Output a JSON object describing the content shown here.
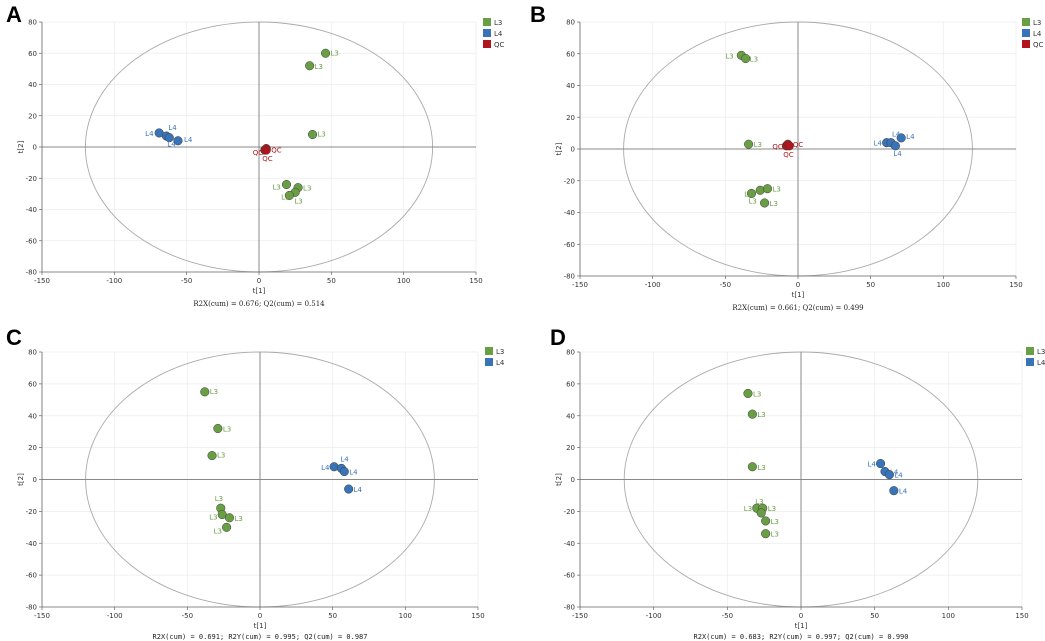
{
  "colors": {
    "L3": "#6a9e45",
    "L4": "#3a74b8",
    "QC": "#b0141c",
    "axis": "#888888",
    "ellipse": "#aaaaaa"
  },
  "chart_data": [
    {
      "panel": "A",
      "type": "scatter",
      "title": "",
      "xlabel": "t[1]",
      "ylabel": "t[2]",
      "xlim": [
        -150,
        150
      ],
      "ylim": [
        -80,
        80
      ],
      "xticks": [
        -150,
        -100,
        -50,
        0,
        50,
        100,
        150
      ],
      "yticks": [
        -80,
        -60,
        -40,
        -20,
        0,
        20,
        40,
        60,
        80
      ],
      "footer": "R2X(cum) = 0.676; Q2(cum) = 0.514",
      "legend": [
        "L3",
        "L4",
        "QC"
      ],
      "series": [
        {
          "name": "L3",
          "points": [
            {
              "x": 46,
              "y": 60,
              "label": "L3"
            },
            {
              "x": 35,
              "y": 52,
              "label": "L3"
            },
            {
              "x": 37,
              "y": 8,
              "label": "L3"
            },
            {
              "x": 19,
              "y": -24,
              "label": "L3"
            },
            {
              "x": 27,
              "y": -26,
              "label": "L3"
            },
            {
              "x": 25,
              "y": -29,
              "label": "L3"
            },
            {
              "x": 21,
              "y": -31,
              "label": "L3"
            }
          ]
        },
        {
          "name": "L4",
          "points": [
            {
              "x": -69,
              "y": 9,
              "label": "L4"
            },
            {
              "x": -64,
              "y": 7,
              "label": "L4"
            },
            {
              "x": -62,
              "y": 6,
              "label": "L4"
            },
            {
              "x": -56,
              "y": 4,
              "label": "L4"
            }
          ]
        },
        {
          "name": "QC",
          "points": [
            {
              "x": 4,
              "y": -2,
              "label": "QC"
            },
            {
              "x": 5,
              "y": -1,
              "label": "QC"
            },
            {
              "x": 5,
              "y": -2,
              "label": "QC"
            }
          ]
        }
      ]
    },
    {
      "panel": "B",
      "type": "scatter",
      "title": "",
      "xlabel": "t[1]",
      "ylabel": "t[2]",
      "xlim": [
        -150,
        150
      ],
      "ylim": [
        -80,
        80
      ],
      "xticks": [
        -150,
        -100,
        -50,
        0,
        50,
        100,
        150
      ],
      "yticks": [
        -80,
        -60,
        -40,
        -20,
        0,
        20,
        40,
        60,
        80
      ],
      "footer": "R2X(cum) = 0.661; Q2(cum) = 0.499",
      "legend": [
        "L3",
        "L4",
        "QC"
      ],
      "series": [
        {
          "name": "L3",
          "points": [
            {
              "x": -39,
              "y": 59,
              "label": "L3"
            },
            {
              "x": -36,
              "y": 57,
              "label": "L3"
            },
            {
              "x": -34,
              "y": 3,
              "label": "L3"
            },
            {
              "x": -32,
              "y": -28,
              "label": "L3"
            },
            {
              "x": -26,
              "y": -26,
              "label": "L3"
            },
            {
              "x": -21,
              "y": -25,
              "label": "L3"
            },
            {
              "x": -23,
              "y": -34,
              "label": "L3"
            }
          ]
        },
        {
          "name": "L4",
          "points": [
            {
              "x": 61,
              "y": 4,
              "label": "L4"
            },
            {
              "x": 64,
              "y": 4,
              "label": "L4"
            },
            {
              "x": 67,
              "y": 2,
              "label": "L4"
            },
            {
              "x": 71,
              "y": 7,
              "label": "L4"
            }
          ]
        },
        {
          "name": "QC",
          "points": [
            {
              "x": -8,
              "y": 2,
              "label": "QC"
            },
            {
              "x": -7,
              "y": 3,
              "label": "QC"
            },
            {
              "x": -6,
              "y": 2,
              "label": "QC"
            }
          ]
        }
      ]
    },
    {
      "panel": "C",
      "type": "scatter",
      "title": "",
      "xlabel": "t[1]",
      "ylabel": "t[2]",
      "xlim": [
        -150,
        150
      ],
      "ylim": [
        -80,
        80
      ],
      "xticks": [
        -150,
        -100,
        -50,
        0,
        50,
        100,
        150
      ],
      "yticks": [
        -80,
        -60,
        -40,
        -20,
        0,
        20,
        40,
        60,
        80
      ],
      "footer": "R2X(cum) = 0.691; R2Y(cum) = 0.995; Q2(cum) = 0.987",
      "legend": [
        "L3",
        "L4"
      ],
      "series": [
        {
          "name": "L3",
          "points": [
            {
              "x": -38,
              "y": 55,
              "label": "L3"
            },
            {
              "x": -29,
              "y": 32,
              "label": "L3"
            },
            {
              "x": -33,
              "y": 15,
              "label": "L3"
            },
            {
              "x": -27,
              "y": -18,
              "label": "L3"
            },
            {
              "x": -26,
              "y": -22,
              "label": "L3"
            },
            {
              "x": -21,
              "y": -24,
              "label": "L3"
            },
            {
              "x": -23,
              "y": -30,
              "label": "L3"
            }
          ]
        },
        {
          "name": "L4",
          "points": [
            {
              "x": 51,
              "y": 8,
              "label": "L4"
            },
            {
              "x": 56,
              "y": 7,
              "label": "L4"
            },
            {
              "x": 58,
              "y": 5,
              "label": "L4"
            },
            {
              "x": 61,
              "y": -6,
              "label": "L4"
            }
          ]
        }
      ]
    },
    {
      "panel": "D",
      "type": "scatter",
      "title": "",
      "xlabel": "t[1]",
      "ylabel": "t[2]",
      "xlim": [
        -150,
        150
      ],
      "ylim": [
        -80,
        80
      ],
      "xticks": [
        -150,
        -100,
        -50,
        0,
        50,
        100,
        150
      ],
      "yticks": [
        -80,
        -60,
        -40,
        -20,
        0,
        20,
        40,
        60,
        80
      ],
      "footer": "R2X(cum) = 0.683; R2Y(cum) = 0.997; Q2(cum) = 0.990",
      "legend": [
        "L3",
        "L4"
      ],
      "series": [
        {
          "name": "L3",
          "points": [
            {
              "x": -36,
              "y": 54,
              "label": "L3"
            },
            {
              "x": -33,
              "y": 41,
              "label": "L3"
            },
            {
              "x": -33,
              "y": 8,
              "label": "L3"
            },
            {
              "x": -30,
              "y": -18,
              "label": "L3"
            },
            {
              "x": -26,
              "y": -18,
              "label": "L3"
            },
            {
              "x": -27,
              "y": -21,
              "label": "L3"
            },
            {
              "x": -24,
              "y": -26,
              "label": "L3"
            },
            {
              "x": -24,
              "y": -34,
              "label": "L3"
            }
          ]
        },
        {
          "name": "L4",
          "points": [
            {
              "x": 54,
              "y": 10,
              "label": "L4"
            },
            {
              "x": 57,
              "y": 5,
              "label": "L4"
            },
            {
              "x": 60,
              "y": 3,
              "label": "L4"
            },
            {
              "x": 63,
              "y": -7,
              "label": "L4"
            }
          ]
        }
      ]
    }
  ]
}
